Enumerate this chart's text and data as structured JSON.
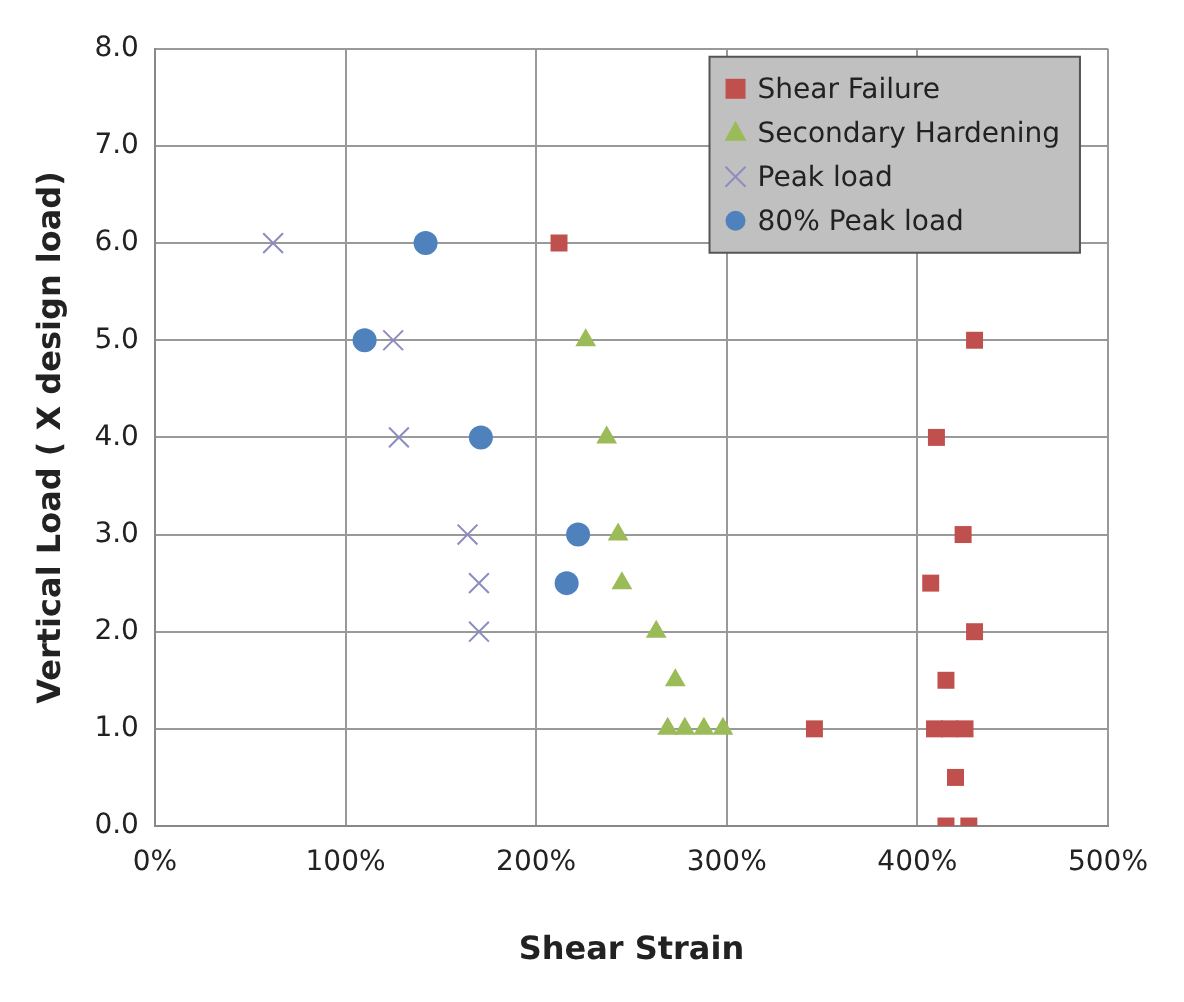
{
  "chart_data": {
    "type": "scatter",
    "xlabel": "Shear Strain",
    "ylabel": "Vertical Load ( X design load)",
    "xlim": [
      0,
      500
    ],
    "xticks": [
      {
        "value": 0,
        "label": "0%"
      },
      {
        "value": 100,
        "label": "100%"
      },
      {
        "value": 200,
        "label": "200%"
      },
      {
        "value": 300,
        "label": "300%"
      },
      {
        "value": 400,
        "label": "400%"
      },
      {
        "value": 500,
        "label": "500%"
      }
    ],
    "ylim": [
      0,
      8
    ],
    "yticks": [
      {
        "value": 0,
        "label": "0.0"
      },
      {
        "value": 1,
        "label": "1.0"
      },
      {
        "value": 2,
        "label": "2.0"
      },
      {
        "value": 3,
        "label": "3.0"
      },
      {
        "value": 4,
        "label": "4.0"
      },
      {
        "value": 5,
        "label": "5.0"
      },
      {
        "value": 6,
        "label": "6.0"
      },
      {
        "value": 7,
        "label": "7.0"
      },
      {
        "value": 8,
        "label": "8.0"
      }
    ],
    "grid": true,
    "legend": "top right",
    "series": [
      {
        "name": "Shear Failure",
        "color": "#c0504d",
        "marker": "square",
        "x": [
          212,
          430,
          410,
          424,
          407,
          430,
          415,
          346,
          409,
          417,
          425,
          420,
          415,
          427
        ],
        "values": [
          6,
          5,
          4,
          3,
          2.5,
          2,
          1.5,
          1,
          1,
          1,
          1,
          0.5,
          0,
          0
        ]
      },
      {
        "name": "Secondary Hardening",
        "color": "#9bbb59",
        "marker": "triangle",
        "x": [
          226,
          237,
          243,
          245,
          263,
          273,
          269,
          278,
          288,
          298
        ],
        "values": [
          5,
          4,
          3,
          2.5,
          2,
          1.5,
          1,
          1,
          1,
          1
        ]
      },
      {
        "name": "Peak load",
        "color": "#8c8cc0",
        "marker": "cross",
        "x": [
          62,
          125,
          128,
          164,
          170,
          170
        ],
        "values": [
          6,
          5,
          4,
          3,
          2.5,
          2
        ]
      },
      {
        "name": "80% Peak load",
        "color": "#4f81bd",
        "marker": "circle",
        "x": [
          142,
          110,
          171,
          222,
          216
        ],
        "values": [
          6,
          5,
          4,
          3,
          2.5
        ]
      }
    ]
  }
}
